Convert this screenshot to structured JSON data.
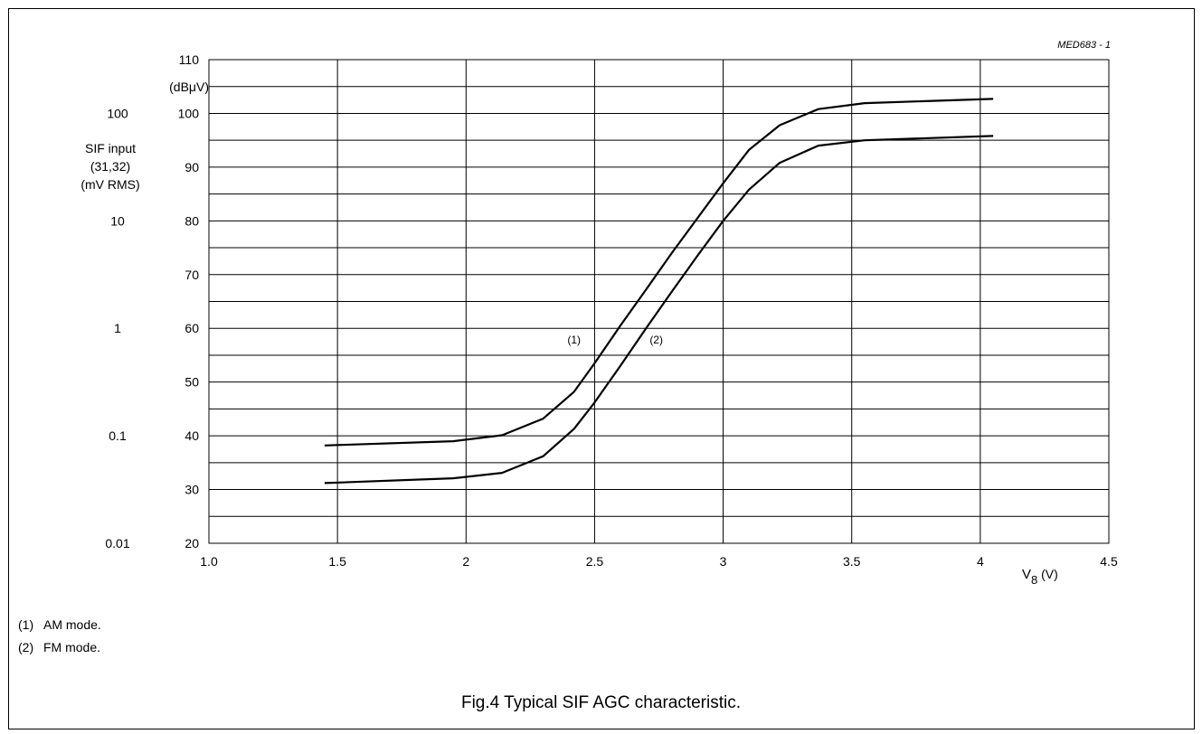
{
  "figure": {
    "caption": "Fig.4  Typical SIF AGC characteristic.",
    "code": "MED683 - 1",
    "notes": [
      {
        "num": "(1)",
        "text": "AM mode."
      },
      {
        "num": "(2)",
        "text": "FM mode."
      }
    ]
  },
  "chart_data": {
    "type": "line",
    "x": {
      "min": 1.0,
      "max": 4.5,
      "ticks": [
        "1.0",
        "1.5",
        "2",
        "2.5",
        "3",
        "3.5",
        "4",
        "4.5"
      ],
      "tick_values": [
        1.0,
        1.5,
        2.0,
        2.5,
        3.0,
        3.5,
        4.0,
        4.5
      ],
      "label_main": "V",
      "label_sub": "8",
      "label_unit": " (V)"
    },
    "y": {
      "min": 20,
      "max": 110,
      "ticks": [
        "20",
        "30",
        "40",
        "50",
        "60",
        "70",
        "80",
        "90",
        "100",
        "110"
      ],
      "tick_values": [
        20,
        30,
        40,
        50,
        60,
        70,
        80,
        90,
        100,
        110
      ],
      "unit_label": "(dBμV)",
      "grid_step": 5
    },
    "y_secondary": {
      "label_lines": [
        "SIF input",
        "(31,32)",
        "(mV RMS)"
      ],
      "ticks": [
        {
          "label": "0.01",
          "db": 20
        },
        {
          "label": "0.1",
          "db": 40
        },
        {
          "label": "1",
          "db": 60
        },
        {
          "label": "10",
          "db": 80
        },
        {
          "label": "100",
          "db": 100
        }
      ]
    },
    "grid": true,
    "series": [
      {
        "name": "(1)",
        "label_at": [
          2.42,
          58
        ],
        "points": [
          [
            1.45,
            38.2
          ],
          [
            1.95,
            39.0
          ],
          [
            2.14,
            40.1
          ],
          [
            2.3,
            43.2
          ],
          [
            2.42,
            48.2
          ],
          [
            2.5,
            53.5
          ],
          [
            2.6,
            60.5
          ],
          [
            2.7,
            67.2
          ],
          [
            2.8,
            74.0
          ],
          [
            2.9,
            80.5
          ],
          [
            3.0,
            87.0
          ],
          [
            3.1,
            93.2
          ],
          [
            3.22,
            97.8
          ],
          [
            3.37,
            100.8
          ],
          [
            3.55,
            101.9
          ],
          [
            4.05,
            102.7
          ]
        ]
      },
      {
        "name": "(2)",
        "label_at": [
          2.74,
          58
        ],
        "points": [
          [
            1.45,
            31.2
          ],
          [
            1.95,
            32.1
          ],
          [
            2.14,
            33.1
          ],
          [
            2.3,
            36.2
          ],
          [
            2.42,
            41.3
          ],
          [
            2.5,
            46.2
          ],
          [
            2.6,
            53.0
          ],
          [
            2.7,
            60.0
          ],
          [
            2.8,
            66.8
          ],
          [
            2.9,
            73.5
          ],
          [
            3.0,
            80.0
          ],
          [
            3.1,
            85.8
          ],
          [
            3.22,
            90.8
          ],
          [
            3.37,
            94.0
          ],
          [
            3.55,
            95.0
          ],
          [
            4.05,
            95.8
          ]
        ]
      }
    ]
  }
}
